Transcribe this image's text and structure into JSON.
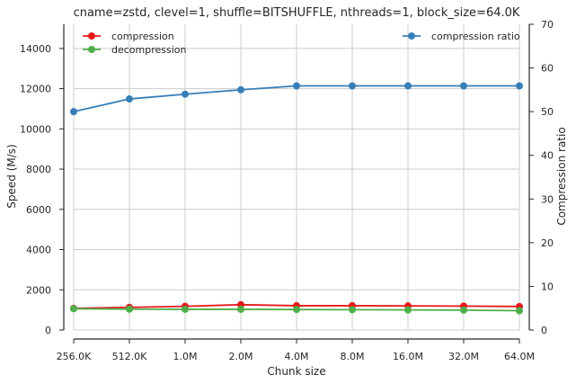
{
  "chart_data": {
    "type": "line",
    "title": "cname=zstd, clevel=1, shuffle=BITSHUFFLE, nthreads=1, block_size=64.0K",
    "xlabel": "Chunk size",
    "ylabel": "Speed (M/s)",
    "y2label": "Compression ratio",
    "categories": [
      "256.0K",
      "512.0K",
      "1.0M",
      "2.0M",
      "4.0M",
      "8.0M",
      "16.0M",
      "32.0M",
      "64.0M"
    ],
    "ylim": [
      0,
      15200
    ],
    "yticks": [
      0,
      2000,
      4000,
      6000,
      8000,
      10000,
      12000,
      14000
    ],
    "y2lim": [
      0,
      70
    ],
    "y2ticks": [
      0,
      10,
      20,
      30,
      40,
      50,
      60,
      70
    ],
    "grid": true,
    "legend_left": "top-left",
    "legend_right": "top-right",
    "series": [
      {
        "name": "compression",
        "axis": "left",
        "color": "#e41a1c",
        "values": [
          1080,
          1130,
          1180,
          1260,
          1210,
          1210,
          1200,
          1190,
          1170
        ]
      },
      {
        "name": "decompression",
        "axis": "left",
        "color": "#4daf4a",
        "values": [
          1060,
          1040,
          1030,
          1030,
          1020,
          1010,
          1000,
          990,
          960
        ]
      },
      {
        "name": "compression ratio",
        "axis": "right",
        "color": "#377eb8",
        "values": [
          50.0,
          52.9,
          54.0,
          55.0,
          55.9,
          55.9,
          55.9,
          55.9,
          55.9
        ]
      }
    ]
  }
}
